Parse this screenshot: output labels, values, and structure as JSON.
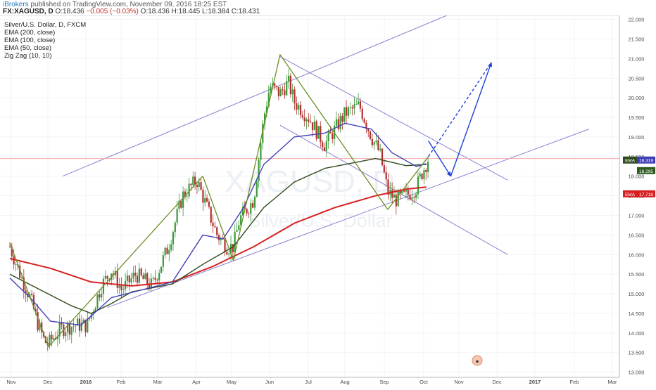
{
  "header": {
    "author": "iBrokers",
    "published_text": "published on TradingView.com, November 09, 2016 18:25 EST",
    "symbol": "FX:XAGUSD, D",
    "o_label": "O:",
    "o_value": "18.436",
    "change": "−0.005 (−0.03%)",
    "h_label": "H:",
    "h_value": "18.445",
    "l_label": "L:",
    "l_value": "18.384",
    "c_label": "C:",
    "c_value": "18.431"
  },
  "legend": {
    "title": "Silver/U.S. Dollar, D, FXCM",
    "items": [
      "EMA (200, close)",
      "EMA (100, close)",
      "EMA (50, close)",
      "Zig Zag (10, 10)"
    ]
  },
  "watermark": {
    "symbol": "XAGUSD, D",
    "name": "Silver/U.S. Dollar"
  },
  "chart_data": {
    "type": "candlestick",
    "symbol": "XAGUSD",
    "timeframe": "D",
    "ylim": [
      12.85,
      22.1
    ],
    "y_ticks": [
      "22.000",
      "21.500",
      "21.000",
      "20.500",
      "20.000",
      "19.500",
      "19.000",
      "18.500",
      "18.000",
      "17.500",
      "17.000",
      "16.500",
      "16.000",
      "15.500",
      "15.000",
      "14.500",
      "14.000",
      "13.500",
      "13.000"
    ],
    "x_ticks": [
      "Nov",
      "Dec",
      "2016",
      "Feb",
      "Mar",
      "Apr",
      "May",
      "Jun",
      "Jul",
      "Aug",
      "Sep",
      "Oct",
      "Nov",
      "Dec",
      "2017",
      "Feb",
      "Mar"
    ],
    "last_price": 18.431,
    "price_labels": [
      {
        "tag": "EMA",
        "value": "18.319",
        "color": "#3f3fb5"
      },
      {
        "tag": "",
        "value": "18.295",
        "color": "#2f5a1e"
      },
      {
        "tag": "EMA",
        "value": "17.719",
        "color": "#d62020"
      }
    ],
    "price_path": [
      [
        0,
        16.2
      ],
      [
        0.05,
        15.5
      ],
      [
        0.1,
        14.9
      ],
      [
        0.14,
        14.2
      ],
      [
        0.17,
        13.8
      ],
      [
        0.19,
        13.7
      ],
      [
        0.2,
        13.8
      ],
      [
        0.25,
        14.1
      ],
      [
        0.32,
        14.2
      ],
      [
        0.38,
        14.2
      ],
      [
        0.45,
        15.2
      ],
      [
        0.5,
        15.6
      ],
      [
        0.55,
        15.1
      ],
      [
        0.62,
        15.5
      ],
      [
        0.7,
        15.2
      ],
      [
        0.78,
        16.2
      ],
      [
        0.85,
        17.5
      ],
      [
        0.92,
        17.9
      ],
      [
        0.97,
        17.2
      ],
      [
        1.02,
        16.5
      ],
      [
        1.07,
        16.2
      ],
      [
        1.1,
        16.2
      ],
      [
        1.13,
        16.9
      ],
      [
        1.2,
        17.4
      ],
      [
        1.25,
        19.5
      ],
      [
        1.28,
        20.3
      ],
      [
        1.33,
        20.1
      ],
      [
        1.37,
        20.4
      ],
      [
        1.4,
        19.9
      ],
      [
        1.47,
        19.5
      ],
      [
        1.55,
        18.8
      ],
      [
        1.65,
        19.6
      ],
      [
        1.72,
        19.8
      ],
      [
        1.78,
        19.0
      ],
      [
        1.82,
        18.6
      ],
      [
        1.86,
        17.6
      ],
      [
        1.9,
        17.4
      ],
      [
        1.95,
        17.5
      ],
      [
        2.0,
        17.7
      ],
      [
        2.03,
        18.1
      ],
      [
        2.06,
        18.45
      ]
    ],
    "series": [
      {
        "name": "EMA (200, close)",
        "color": "#d62020",
        "points": [
          [
            0,
            15.9
          ],
          [
            0.2,
            15.65
          ],
          [
            0.4,
            15.3
          ],
          [
            0.6,
            15.2
          ],
          [
            0.8,
            15.3
          ],
          [
            1.0,
            15.7
          ],
          [
            1.2,
            16.2
          ],
          [
            1.4,
            16.8
          ],
          [
            1.6,
            17.2
          ],
          [
            1.8,
            17.5
          ],
          [
            1.95,
            17.67
          ],
          [
            2.05,
            17.72
          ]
        ]
      },
      {
        "name": "EMA (100, close)",
        "color": "#2f4a1e",
        "points": [
          [
            0,
            15.5
          ],
          [
            0.15,
            15.1
          ],
          [
            0.3,
            14.7
          ],
          [
            0.4,
            14.5
          ],
          [
            0.5,
            14.75
          ],
          [
            0.6,
            15.05
          ],
          [
            0.8,
            15.25
          ],
          [
            0.95,
            15.75
          ],
          [
            1.1,
            16.2
          ],
          [
            1.25,
            17.2
          ],
          [
            1.4,
            17.85
          ],
          [
            1.55,
            18.2
          ],
          [
            1.7,
            18.35
          ],
          [
            1.8,
            18.45
          ],
          [
            1.95,
            18.27
          ],
          [
            2.05,
            18.3
          ]
        ]
      },
      {
        "name": "EMA (50, close)",
        "color": "#3f3fb5",
        "points": [
          [
            0,
            15.4
          ],
          [
            0.1,
            14.9
          ],
          [
            0.2,
            14.3
          ],
          [
            0.35,
            14.2
          ],
          [
            0.5,
            14.9
          ],
          [
            0.65,
            15.1
          ],
          [
            0.8,
            15.3
          ],
          [
            0.95,
            16.5
          ],
          [
            1.05,
            16.4
          ],
          [
            1.15,
            17.2
          ],
          [
            1.25,
            18.3
          ],
          [
            1.4,
            19.0
          ],
          [
            1.55,
            19.1
          ],
          [
            1.65,
            19.35
          ],
          [
            1.78,
            19.2
          ],
          [
            1.88,
            18.6
          ],
          [
            2.0,
            18.25
          ],
          [
            2.05,
            18.32
          ]
        ]
      },
      {
        "name": "Zig Zag (10, 10)",
        "color": "#6b8e23",
        "points": [
          [
            0,
            16.3
          ],
          [
            0.19,
            13.65
          ],
          [
            0.95,
            18.0
          ],
          [
            1.1,
            15.85
          ],
          [
            1.33,
            21.1
          ],
          [
            1.86,
            17.15
          ],
          [
            2.06,
            18.5
          ]
        ]
      }
    ],
    "annotations": {
      "channel_upper": [
        [
          0.26,
          18.0
        ],
        [
          2.15,
          22.1
        ]
      ],
      "channel_lower": [
        [
          0.48,
          14.65
        ],
        [
          2.85,
          19.2
        ]
      ],
      "desc_upper": [
        [
          1.33,
          21.05
        ],
        [
          2.45,
          17.9
        ]
      ],
      "desc_lower": [
        [
          1.33,
          19.3
        ],
        [
          2.45,
          16.0
        ]
      ],
      "horizontal_level": 18.45,
      "projection_solid": [
        [
          2.06,
          18.9
        ],
        [
          2.17,
          18.0
        ],
        [
          2.37,
          20.9
        ]
      ],
      "projection_dashed": [
        [
          2.06,
          18.5
        ],
        [
          2.37,
          20.9
        ]
      ]
    }
  }
}
